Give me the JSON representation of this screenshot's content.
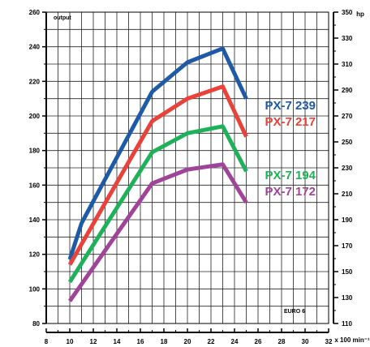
{
  "chart_data": {
    "type": "line",
    "title": "",
    "corner_label": "output",
    "standard_label": "EURO 6",
    "xlabel": "x 100 min⁻¹",
    "ylabel_right": "hp",
    "x_ticks": [
      "8",
      "10",
      "12",
      "14",
      "16",
      "18",
      "20",
      "22",
      "24",
      "26",
      "28",
      "30",
      "32"
    ],
    "y_ticks_left": [
      "80",
      "100",
      "120",
      "140",
      "160",
      "180",
      "200",
      "220",
      "240",
      "260"
    ],
    "y_ticks_right": [
      "110",
      "130",
      "150",
      "170",
      "190",
      "210",
      "230",
      "250",
      "270",
      "290",
      "310",
      "330",
      "350"
    ],
    "xlim": [
      8,
      32
    ],
    "ylim": [
      80,
      260
    ],
    "ylim_right": [
      110,
      350
    ],
    "grid": true,
    "legend_placement": "right",
    "series": [
      {
        "name": "PX-7 239",
        "color": "#1f5aa6",
        "x": [
          10,
          11,
          17,
          20,
          23,
          25
        ],
        "y": [
          117,
          138,
          214,
          231,
          239,
          210
        ]
      },
      {
        "name": "PX-7 217",
        "color": "#e8423a",
        "x": [
          10,
          17,
          20,
          23,
          25
        ],
        "y": [
          114,
          197,
          210,
          217,
          188
        ]
      },
      {
        "name": "PX-7 194",
        "color": "#1fb15a",
        "x": [
          10,
          17,
          20,
          23,
          25
        ],
        "y": [
          104,
          179,
          190,
          194,
          168
        ]
      },
      {
        "name": "PX-7 172",
        "color": "#a0449a",
        "x": [
          10,
          17,
          20,
          23,
          25
        ],
        "y": [
          93,
          161,
          169,
          172,
          150
        ]
      }
    ]
  }
}
